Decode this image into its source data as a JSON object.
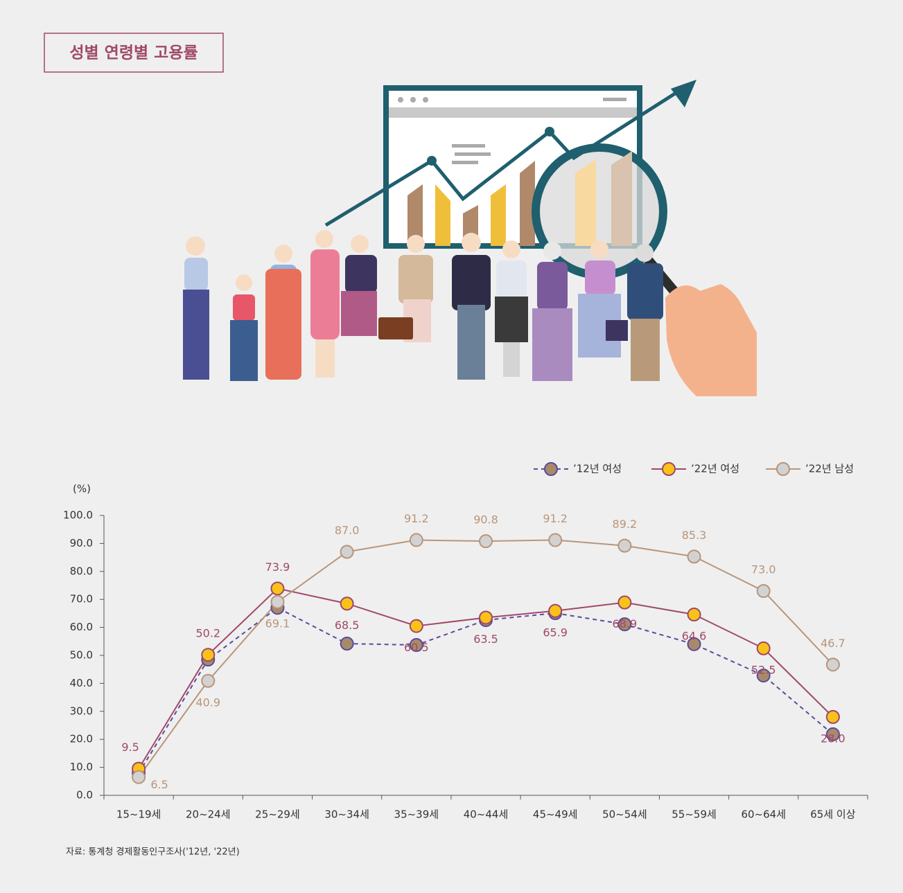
{
  "chart_data": {
    "type": "line",
    "title": "성별 연령별 고용률",
    "y_label": "(%)",
    "source": "자료: 통계청 경제활동인구조사('12년, '22년)",
    "categories": [
      "15~19세",
      "20~24세",
      "25~29세",
      "30~34세",
      "35~39세",
      "40~44세",
      "45~49세",
      "50~54세",
      "55~59세",
      "60~64세",
      "65세 이상"
    ],
    "series": [
      {
        "name": "’12년 여성",
        "color": "#5b4a9a",
        "marker_color": "#a88a6a",
        "line_style": "dashed",
        "values": [
          7.9,
          48.5,
          67.0,
          54.2,
          53.7,
          62.6,
          65.1,
          61.1,
          54.0,
          42.8,
          21.8
        ]
      },
      {
        "name": "’22년 여성",
        "color": "#a04868",
        "marker_color": "#f9c21a",
        "line_style": "solid",
        "label_color": "#a04868",
        "values": [
          9.5,
          50.2,
          73.9,
          68.5,
          60.5,
          63.5,
          65.9,
          68.9,
          64.6,
          52.5,
          28.0
        ],
        "value_labels": [
          "9.5",
          "50.2",
          "73.9",
          "68.5",
          "60.5",
          "63.5",
          "65.9",
          "68.9",
          "64.6",
          "52.5",
          "28.0"
        ]
      },
      {
        "name": "’22년 남성",
        "color": "#b8957a",
        "marker_color": "#d2d2d2",
        "line_style": "solid",
        "label_color": "#b8957a",
        "values": [
          6.5,
          40.9,
          69.1,
          87.0,
          91.2,
          90.8,
          91.2,
          89.2,
          85.3,
          73.0,
          46.7
        ],
        "value_labels": [
          "6.5",
          "40.9",
          "69.1",
          "87.0",
          "91.2",
          "90.8",
          "91.2",
          "89.2",
          "85.3",
          "73.0",
          "46.7"
        ]
      }
    ],
    "ylim": [
      0,
      100
    ],
    "yticks": [
      {
        "value": 0,
        "label": "0.0"
      },
      {
        "value": 10,
        "label": "10.0"
      },
      {
        "value": 20,
        "label": "20.0"
      },
      {
        "value": 30,
        "label": "30.0"
      },
      {
        "value": 40,
        "label": "40.0"
      },
      {
        "value": 50,
        "label": "50.0"
      },
      {
        "value": 60,
        "label": "60.0"
      },
      {
        "value": 70,
        "label": "70.0"
      },
      {
        "value": 80,
        "label": "80.0"
      },
      {
        "value": 90,
        "label": "90.0"
      },
      {
        "value": 100,
        "label": "100.0"
      }
    ],
    "legend": "top-right",
    "grid": false
  }
}
